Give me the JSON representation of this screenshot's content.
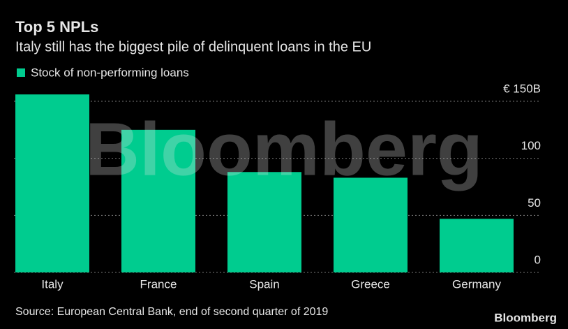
{
  "chart_data": {
    "type": "bar",
    "title": "Top 5 NPLs",
    "subtitle": "Italy still has the biggest pile of delinquent loans in the EU",
    "categories": [
      "Italy",
      "France",
      "Spain",
      "Greece",
      "Germany"
    ],
    "series": [
      {
        "name": "Stock of non-performing loans",
        "color": "#00cc8f",
        "values": [
          156,
          125,
          88,
          83,
          47
        ]
      }
    ],
    "ylim": [
      0,
      150
    ],
    "yticks": [
      0,
      50,
      100,
      {
        "value": 150,
        "label": "€ 150B"
      }
    ],
    "grid": true,
    "source": "Source: European Central Bank, end of second quarter of 2019",
    "watermark": "Bloomberg",
    "logo": "Bloomberg"
  }
}
